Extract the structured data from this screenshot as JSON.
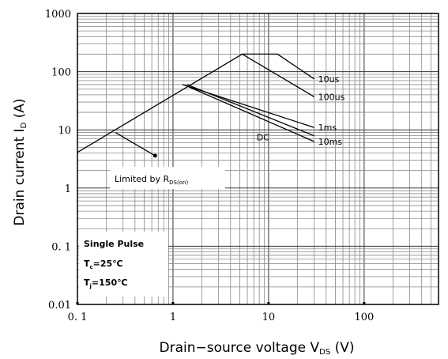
{
  "chart_data": {
    "type": "line",
    "x_scale": "log",
    "y_scale": "log",
    "xlim": [
      0.1,
      600
    ],
    "ylim": [
      0.01,
      1000
    ],
    "grid": true,
    "xlabel": "Drain−source voltage V",
    "xlabel_sub": "DS",
    "xlabel_unit": " (V)",
    "ylabel": "Drain current I",
    "ylabel_sub": "D",
    "ylabel_unit": " (A)",
    "x_ticks": [
      {
        "value": 0.1,
        "label": "0. 1"
      },
      {
        "value": 1,
        "label": "1"
      },
      {
        "value": 10,
        "label": "10"
      },
      {
        "value": 100,
        "label": "100"
      }
    ],
    "y_ticks": [
      {
        "value": 1000,
        "label": "1000"
      },
      {
        "value": 100,
        "label": "100"
      },
      {
        "value": 10,
        "label": "10"
      },
      {
        "value": 1,
        "label": "1"
      },
      {
        "value": 0.1,
        "label": "0. 1"
      },
      {
        "value": 0.01,
        "label": "0.01"
      }
    ],
    "series": [
      {
        "name": "10us",
        "points": [
          [
            0.1,
            4.1
          ],
          [
            5.3,
            200
          ],
          [
            12.4,
            200
          ],
          [
            30,
            75
          ]
        ]
      },
      {
        "name": "100us",
        "points": [
          [
            5.3,
            200
          ],
          [
            30,
            37
          ]
        ]
      },
      {
        "name": "1ms",
        "points": [
          [
            1.25,
            60
          ],
          [
            30,
            11
          ]
        ]
      },
      {
        "name": "10ms",
        "points": [
          [
            1.45,
            55
          ],
          [
            30,
            6.3
          ]
        ]
      },
      {
        "name": "DC",
        "points": [
          [
            1.4,
            60
          ],
          [
            30,
            7.9
          ]
        ]
      },
      {
        "name": "Limited by RDS(on)",
        "points": [
          [
            0.25,
            9
          ],
          [
            0.65,
            3.6
          ]
        ]
      }
    ],
    "labels": [
      {
        "text": "10us",
        "x": 33,
        "y": 75
      },
      {
        "text": "100us",
        "x": 33,
        "y": 37
      },
      {
        "text": "1ms",
        "x": 33,
        "y": 11
      },
      {
        "text": "10ms",
        "x": 33,
        "y": 6.3
      },
      {
        "text": "DC",
        "x": 7.5,
        "y": 7.5
      }
    ],
    "legend_box": {
      "limited_main": "Limited by R",
      "limited_sub": "DS(on)",
      "single_pulse": "Single Pulse",
      "tc_main": "T",
      "tc_sub": "c",
      "tc_val": "=25℃",
      "tj_main": "T",
      "tj_sub": "j",
      "tj_val": "=150℃"
    }
  }
}
